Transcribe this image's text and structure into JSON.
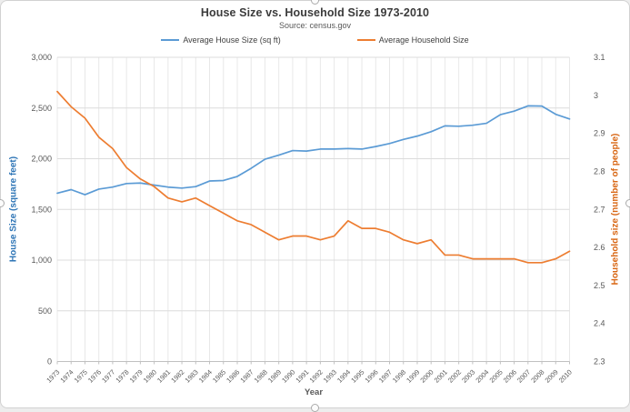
{
  "header": {
    "title": "House Size vs. Household Size 1973-2010",
    "subtitle": "Source: census.gov"
  },
  "legend": [
    {
      "label": "Average House Size (sq ft)",
      "color": "#5B9BD5"
    },
    {
      "label": "Average Household Size",
      "color": "#ED7D31"
    }
  ],
  "chart_data": {
    "type": "line",
    "title": "House Size vs. Household Size 1973-2010",
    "subtitle": "Source: census.gov",
    "grid": true,
    "legend_position": "top",
    "x": [
      1973,
      1974,
      1975,
      1976,
      1977,
      1978,
      1979,
      1980,
      1981,
      1982,
      1983,
      1984,
      1985,
      1986,
      1987,
      1988,
      1989,
      1990,
      1991,
      1992,
      1993,
      1994,
      1995,
      1996,
      1997,
      1998,
      1999,
      2000,
      2001,
      2002,
      2003,
      2004,
      2005,
      2006,
      2007,
      2008,
      2009,
      2010
    ],
    "x_axis": {
      "title": "Year",
      "labels": [
        "1973",
        "1974",
        "1975",
        "1976",
        "1977",
        "1978",
        "1979",
        "1980",
        "1981",
        "1982",
        "1983",
        "1984",
        "1985",
        "1986",
        "1987",
        "1988",
        "1989",
        "1990",
        "1991",
        "1992",
        "1993",
        "1994",
        "1995",
        "1996",
        "1997",
        "1998",
        "1999",
        "2000",
        "2001",
        "2002",
        "2003",
        "2004",
        "2005",
        "2006",
        "2007",
        "2008",
        "2009",
        "2010"
      ]
    },
    "left_axis": {
      "title": "House Size (square feet)",
      "color": "#2E75B6",
      "min": 0,
      "max": 3000,
      "step": 500,
      "tick_labels": [
        "0",
        "500",
        "1,000",
        "1,500",
        "2,000",
        "2,500",
        "3,000"
      ]
    },
    "right_axis": {
      "title": "Household size (number of people)",
      "color": "#D86613",
      "min": 2.3,
      "max": 3.1,
      "step": 0.1,
      "tick_labels": [
        "2.3",
        "2.4",
        "2.5",
        "2.6",
        "2.7",
        "2.8",
        "2.9",
        "3",
        "3.1"
      ]
    },
    "series": [
      {
        "name": "Average House Size (sq ft)",
        "color": "#5B9BD5",
        "axis": "left",
        "values": [
          1660,
          1695,
          1645,
          1700,
          1720,
          1755,
          1760,
          1740,
          1720,
          1710,
          1725,
          1780,
          1785,
          1825,
          1905,
          1995,
          2035,
          2080,
          2075,
          2095,
          2095,
          2100,
          2095,
          2120,
          2150,
          2190,
          2223,
          2266,
          2324,
          2320,
          2330,
          2349,
          2434,
          2469,
          2521,
          2519,
          2438,
          2392
        ]
      },
      {
        "name": "Average Household Size",
        "color": "#ED7D31",
        "axis": "right",
        "values": [
          3.01,
          2.97,
          2.94,
          2.89,
          2.86,
          2.81,
          2.78,
          2.76,
          2.73,
          2.72,
          2.73,
          2.71,
          2.69,
          2.67,
          2.66,
          2.64,
          2.62,
          2.63,
          2.63,
          2.62,
          2.63,
          2.67,
          2.65,
          2.65,
          2.64,
          2.62,
          2.61,
          2.62,
          2.58,
          2.58,
          2.57,
          2.57,
          2.57,
          2.57,
          2.56,
          2.56,
          2.57,
          2.59
        ]
      }
    ]
  },
  "style": {
    "grid_vertical_color": "#e8e8e8",
    "grid_horizontal_color": "#dcdcdc",
    "axis_line_color": "#c0c0c0",
    "tick_text_color": "#595959"
  }
}
